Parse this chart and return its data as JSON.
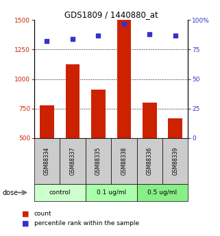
{
  "title": "GDS1809 / 1440880_at",
  "samples": [
    "GSM88334",
    "GSM88337",
    "GSM88335",
    "GSM88338",
    "GSM88336",
    "GSM88339"
  ],
  "bar_values": [
    775,
    1125,
    910,
    1500,
    800,
    665
  ],
  "dot_values": [
    82,
    84,
    87,
    97,
    88,
    87
  ],
  "bar_color": "#cc2200",
  "dot_color": "#3333cc",
  "ylim_left": [
    500,
    1500
  ],
  "ylim_right": [
    0,
    100
  ],
  "yticks_left": [
    500,
    750,
    1000,
    1250,
    1500
  ],
  "yticks_right": [
    0,
    25,
    50,
    75,
    100
  ],
  "ytick_labels_right": [
    "0",
    "25",
    "50",
    "75",
    "100%"
  ],
  "grid_vals": [
    750,
    1000,
    1250
  ],
  "groups": [
    {
      "label": "control",
      "start": 0,
      "end": 2,
      "color": "#ccffcc"
    },
    {
      "label": "0.1 ug/ml",
      "start": 2,
      "end": 4,
      "color": "#aaffaa"
    },
    {
      "label": "0.5 ug/ml",
      "start": 4,
      "end": 6,
      "color": "#88ee88"
    }
  ],
  "dose_label": "dose",
  "legend_count_label": "count",
  "legend_pct_label": "percentile rank within the sample",
  "bar_width": 0.55,
  "sample_box_color": "#cccccc",
  "left_axis_color": "#cc2200",
  "right_axis_color": "#3333cc",
  "bg_color": "#ffffff"
}
